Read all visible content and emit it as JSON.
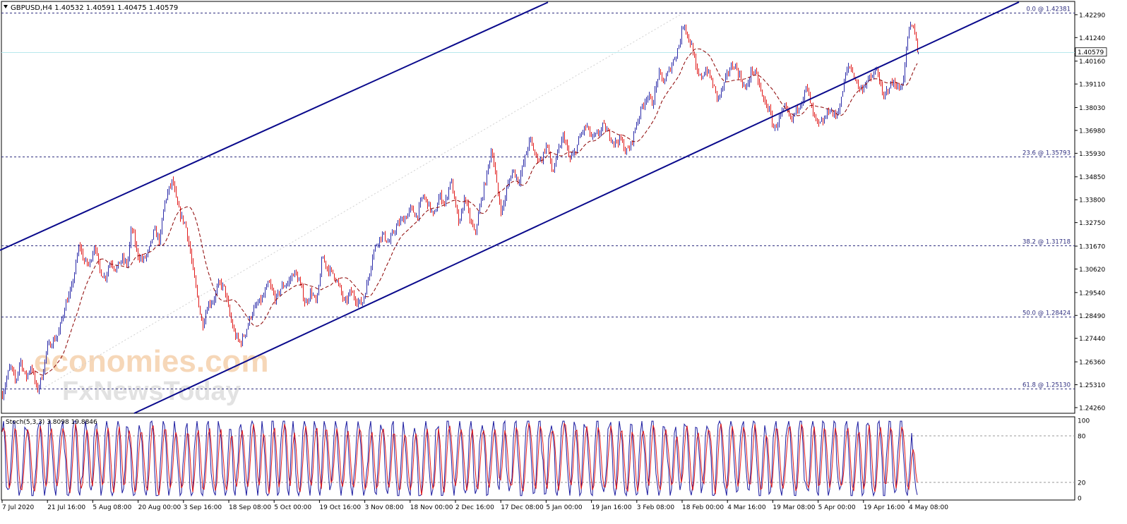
{
  "chart_data": {
    "type": "candlestick",
    "symbol_header": "GBPUSD,H4  1.40532 1.40591 1.40475 1.40579",
    "current_price": 1.40579,
    "price_axis_ticks": [
      1.4229,
      1.4124,
      1.4016,
      1.3911,
      1.3803,
      1.3698,
      1.3593,
      1.3485,
      1.338,
      1.3275,
      1.3167,
      1.3062,
      1.2954,
      1.2849,
      1.2744,
      1.2636,
      1.2531,
      1.2426
    ],
    "price_axis_labels": [
      "1.42290",
      "1.41240",
      "1.40160",
      "1.39110",
      "1.38030",
      "1.36980",
      "1.35930",
      "1.34850",
      "1.33800",
      "1.32750",
      "1.31670",
      "1.30620",
      "1.29540",
      "1.28490",
      "1.27440",
      "1.26360",
      "1.25310",
      "1.24260"
    ],
    "current_price_label": "1.40579",
    "price_range": [
      1.24,
      1.429
    ],
    "time_axis_labels": [
      "7 Jul 2020",
      "21 Jul 16:00",
      "5 Aug 08:00",
      "20 Aug 00:00",
      "3 Sep 16:00",
      "18 Sep 08:00",
      "5 Oct 00:00",
      "19 Oct 16:00",
      "3 Nov 08:00",
      "18 Nov 00:00",
      "2 Dec 16:00",
      "17 Dec 08:00",
      "5 Jan 00:00",
      "19 Jan 16:00",
      "3 Feb 08:00",
      "18 Feb 00:00",
      "4 Mar 16:00",
      "19 Mar 08:00",
      "5 Apr 00:00",
      "19 Apr 16:00",
      "4 May 08:00"
    ],
    "fibonacci_levels": [
      {
        "ratio": "0.0",
        "price": 1.42381,
        "label": "0.0 @ 1.42381"
      },
      {
        "ratio": "23.6",
        "price": 1.35793,
        "label": "23.6 @ 1.35793"
      },
      {
        "ratio": "38.2",
        "price": 1.31718,
        "label": "38.2 @ 1.31718"
      },
      {
        "ratio": "50.0",
        "price": 1.28424,
        "label": "50.0 @ 1.28424"
      },
      {
        "ratio": "61.8",
        "price": 1.2513,
        "label": "61.8 @ 1.25130"
      }
    ],
    "price_path": [
      [
        0,
        1.245
      ],
      [
        14,
        1.262
      ],
      [
        22,
        1.254
      ],
      [
        28,
        1.265
      ],
      [
        36,
        1.256
      ],
      [
        44,
        1.262
      ],
      [
        52,
        1.25
      ],
      [
        60,
        1.258
      ],
      [
        66,
        1.27
      ],
      [
        74,
        1.273
      ],
      [
        82,
        1.276
      ],
      [
        92,
        1.29
      ],
      [
        100,
        1.296
      ],
      [
        108,
        1.31
      ],
      [
        112,
        1.318
      ],
      [
        118,
        1.31
      ],
      [
        126,
        1.308
      ],
      [
        134,
        1.318
      ],
      [
        140,
        1.306
      ],
      [
        148,
        1.302
      ],
      [
        156,
        1.31
      ],
      [
        164,
        1.306
      ],
      [
        172,
        1.311
      ],
      [
        180,
        1.308
      ],
      [
        186,
        1.326
      ],
      [
        194,
        1.313
      ],
      [
        202,
        1.31
      ],
      [
        210,
        1.314
      ],
      [
        218,
        1.324
      ],
      [
        226,
        1.319
      ],
      [
        232,
        1.336
      ],
      [
        238,
        1.342
      ],
      [
        244,
        1.347
      ],
      [
        250,
        1.336
      ],
      [
        256,
        1.33
      ],
      [
        262,
        1.327
      ],
      [
        268,
        1.316
      ],
      [
        274,
        1.303
      ],
      [
        280,
        1.292
      ],
      [
        286,
        1.28
      ],
      [
        294,
        1.29
      ],
      [
        302,
        1.292
      ],
      [
        310,
        1.3
      ],
      [
        318,
        1.297
      ],
      [
        324,
        1.286
      ],
      [
        332,
        1.276
      ],
      [
        340,
        1.272
      ],
      [
        348,
        1.278
      ],
      [
        356,
        1.286
      ],
      [
        364,
        1.29
      ],
      [
        372,
        1.293
      ],
      [
        380,
        1.3
      ],
      [
        390,
        1.292
      ],
      [
        398,
        1.298
      ],
      [
        408,
        1.3
      ],
      [
        416,
        1.305
      ],
      [
        424,
        1.3
      ],
      [
        432,
        1.29
      ],
      [
        440,
        1.296
      ],
      [
        448,
        1.29
      ],
      [
        456,
        1.312
      ],
      [
        464,
        1.306
      ],
      [
        472,
        1.304
      ],
      [
        480,
        1.298
      ],
      [
        488,
        1.29
      ],
      [
        496,
        1.296
      ],
      [
        504,
        1.292
      ],
      [
        512,
        1.29
      ],
      [
        520,
        1.3
      ],
      [
        528,
        1.314
      ],
      [
        536,
        1.32
      ],
      [
        542,
        1.322
      ],
      [
        550,
        1.318
      ],
      [
        558,
        1.324
      ],
      [
        566,
        1.328
      ],
      [
        574,
        1.33
      ],
      [
        582,
        1.334
      ],
      [
        590,
        1.33
      ],
      [
        598,
        1.34
      ],
      [
        606,
        1.336
      ],
      [
        614,
        1.33
      ],
      [
        622,
        1.34
      ],
      [
        630,
        1.336
      ],
      [
        638,
        1.348
      ],
      [
        644,
        1.336
      ],
      [
        650,
        1.326
      ],
      [
        658,
        1.34
      ],
      [
        664,
        1.33
      ],
      [
        672,
        1.322
      ],
      [
        680,
        1.336
      ],
      [
        688,
        1.348
      ],
      [
        696,
        1.362
      ],
      [
        704,
        1.342
      ],
      [
        710,
        1.332
      ],
      [
        718,
        1.344
      ],
      [
        726,
        1.352
      ],
      [
        734,
        1.346
      ],
      [
        742,
        1.356
      ],
      [
        750,
        1.366
      ],
      [
        758,
        1.358
      ],
      [
        766,
        1.356
      ],
      [
        774,
        1.364
      ],
      [
        782,
        1.35
      ],
      [
        790,
        1.36
      ],
      [
        798,
        1.368
      ],
      [
        806,
        1.356
      ],
      [
        814,
        1.36
      ],
      [
        822,
        1.368
      ],
      [
        830,
        1.372
      ],
      [
        838,
        1.366
      ],
      [
        846,
        1.368
      ],
      [
        854,
        1.372
      ],
      [
        862,
        1.368
      ],
      [
        870,
        1.364
      ],
      [
        878,
        1.366
      ],
      [
        886,
        1.36
      ],
      [
        892,
        1.362
      ],
      [
        900,
        1.372
      ],
      [
        908,
        1.38
      ],
      [
        916,
        1.386
      ],
      [
        924,
        1.382
      ],
      [
        932,
        1.396
      ],
      [
        940,
        1.392
      ],
      [
        948,
        1.398
      ],
      [
        956,
        1.404
      ],
      [
        962,
        1.41
      ],
      [
        968,
        1.42
      ],
      [
        974,
        1.412
      ],
      [
        980,
        1.408
      ],
      [
        986,
        1.396
      ],
      [
        992,
        1.394
      ],
      [
        1000,
        1.398
      ],
      [
        1008,
        1.392
      ],
      [
        1016,
        1.384
      ],
      [
        1024,
        1.39
      ],
      [
        1032,
        1.398
      ],
      [
        1040,
        1.4
      ],
      [
        1048,
        1.394
      ],
      [
        1056,
        1.388
      ],
      [
        1064,
        1.398
      ],
      [
        1072,
        1.394
      ],
      [
        1080,
        1.384
      ],
      [
        1088,
        1.38
      ],
      [
        1096,
        1.37
      ],
      [
        1104,
        1.376
      ],
      [
        1112,
        1.38
      ],
      [
        1120,
        1.374
      ],
      [
        1128,
        1.38
      ],
      [
        1136,
        1.384
      ],
      [
        1142,
        1.39
      ],
      [
        1150,
        1.378
      ],
      [
        1158,
        1.372
      ],
      [
        1166,
        1.374
      ],
      [
        1174,
        1.38
      ],
      [
        1182,
        1.376
      ],
      [
        1190,
        1.382
      ],
      [
        1196,
        1.394
      ],
      [
        1202,
        1.4
      ],
      [
        1210,
        1.394
      ],
      [
        1218,
        1.388
      ],
      [
        1226,
        1.392
      ],
      [
        1234,
        1.394
      ],
      [
        1242,
        1.398
      ],
      [
        1250,
        1.384
      ],
      [
        1258,
        1.39
      ],
      [
        1266,
        1.392
      ],
      [
        1274,
        1.388
      ],
      [
        1280,
        1.396
      ],
      [
        1286,
        1.416
      ],
      [
        1292,
        1.418
      ],
      [
        1298,
        1.41
      ],
      [
        1300,
        1.4058
      ]
    ],
    "channel_lines": [
      {
        "name": "upper",
        "from": [
          0,
          1.3148
        ],
        "to": [
          776,
          1.4286
        ]
      },
      {
        "name": "lower",
        "from": [
          190,
          1.24
        ],
        "to": [
          1443,
          1.4287
        ]
      }
    ],
    "stochastic": {
      "header": "Stoch(5,3,3) 3.8098 19.8846",
      "k": 3.8098,
      "d": 19.8846,
      "levels": [
        80,
        20
      ],
      "axis_labels": [
        "100",
        "80",
        "20",
        "0"
      ],
      "range": [
        0,
        100
      ]
    },
    "watermark": {
      "line1": "economies.com",
      "line2": "FxNewsToday"
    },
    "colors": {
      "bull": "#2a2aa8",
      "bear": "#e01818",
      "moving_average": "#8b0000",
      "channel": "#0a0a8c",
      "fib": "#303080",
      "price_line": "#b8e8ec",
      "grid_level": "#999999"
    }
  }
}
